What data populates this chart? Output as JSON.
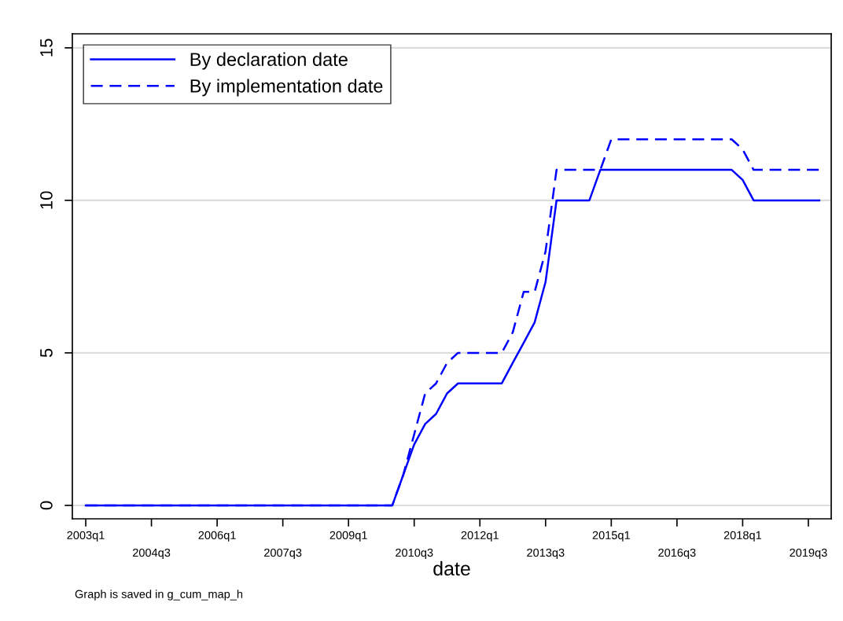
{
  "chart_data": {
    "type": "line",
    "xlabel": "date",
    "annotations": [
      "Graph is saved in g_cum_map_h"
    ],
    "categories": [
      "2003q1",
      null,
      null,
      null,
      null,
      null,
      "2004q3",
      null,
      null,
      null,
      null,
      null,
      "2006q1",
      null,
      null,
      null,
      null,
      null,
      "2007q3",
      null,
      null,
      null,
      null,
      null,
      "2009q1",
      null,
      null,
      null,
      null,
      null,
      "2010q3",
      null,
      null,
      null,
      null,
      null,
      "2012q1",
      null,
      null,
      null,
      null,
      null,
      "2013q3",
      null,
      null,
      null,
      null,
      null,
      "2015q1",
      null,
      null,
      null,
      null,
      null,
      "2016q3",
      null,
      null,
      null,
      null,
      null,
      "2018q1",
      null,
      null,
      null,
      null,
      null,
      "2019q3",
      null
    ],
    "series": [
      {
        "name": "By declaration date",
        "color": "#0000ff",
        "line_style": "solid",
        "values": [
          0,
          0,
          0,
          0,
          0,
          0,
          0,
          0,
          0,
          0,
          0,
          0,
          0,
          0,
          0,
          0,
          0,
          0,
          0,
          0,
          0,
          0,
          0,
          0,
          0,
          0,
          0,
          0,
          0,
          1,
          2,
          2.67,
          3,
          3.67,
          4,
          4,
          4,
          4,
          4,
          4.67,
          5.33,
          6,
          7.33,
          10,
          10,
          10,
          10,
          11,
          11,
          11,
          11,
          11,
          11,
          11,
          11,
          11,
          11,
          11,
          11,
          11,
          10.67,
          10,
          10,
          10,
          10,
          10,
          10,
          10
        ]
      },
      {
        "name": "By implementation date",
        "color": "#0000ff",
        "line_style": "dashed",
        "values": [
          0,
          0,
          0,
          0,
          0,
          0,
          0,
          0,
          0,
          0,
          0,
          0,
          0,
          0,
          0,
          0,
          0,
          0,
          0,
          0,
          0,
          0,
          0,
          0,
          0,
          0,
          0,
          0,
          0,
          1,
          2.33,
          3.67,
          4,
          4.67,
          5,
          5,
          5,
          5,
          5,
          5.67,
          7,
          7,
          8.33,
          11,
          11,
          11,
          11,
          11,
          12,
          12,
          12,
          12,
          12,
          12,
          12,
          12,
          12,
          12,
          12,
          12,
          11.67,
          11,
          11,
          11,
          11,
          11,
          11,
          11
        ]
      }
    ],
    "ylim": [
      -0.44,
      15.46
    ],
    "yticks": [
      0,
      5,
      10,
      15
    ],
    "grid": "y",
    "legend": "top left"
  }
}
